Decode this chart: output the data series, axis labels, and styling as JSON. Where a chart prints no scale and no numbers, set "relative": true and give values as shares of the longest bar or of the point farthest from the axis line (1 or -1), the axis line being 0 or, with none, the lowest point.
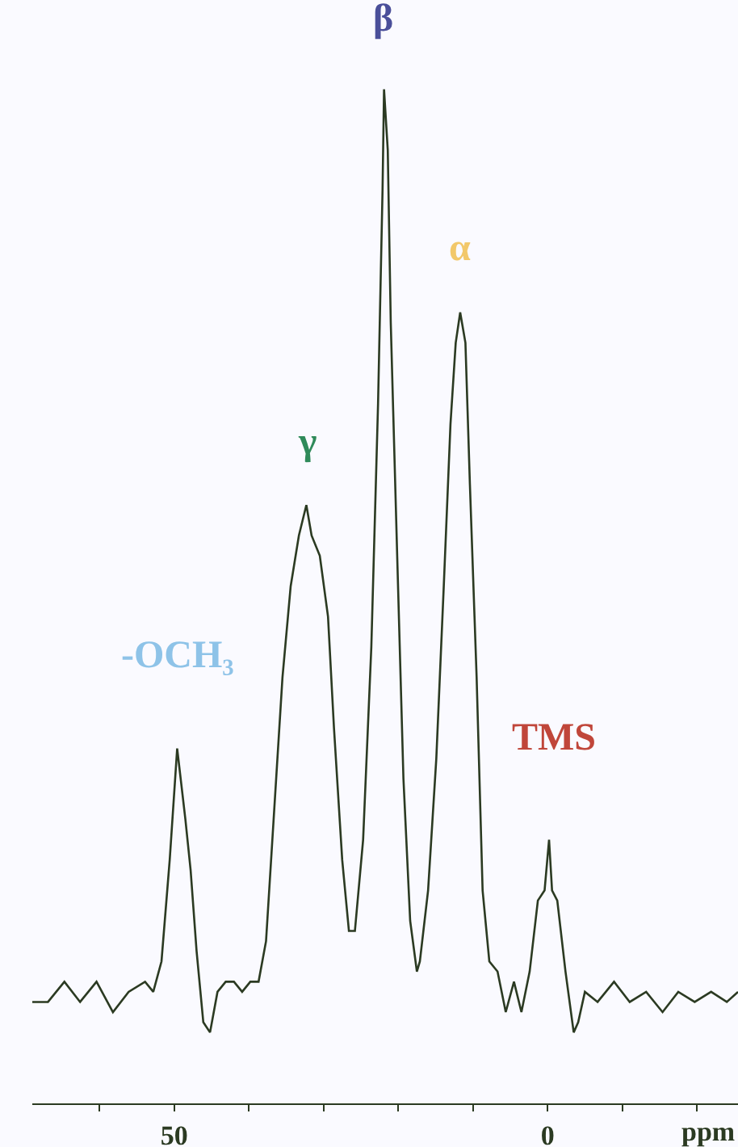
{
  "chart_data": {
    "type": "line",
    "relative": true,
    "xlabel": "ppm",
    "xlim": [
      69,
      -25.5
    ],
    "xticks": [
      {
        "value": 60,
        "label": null
      },
      50,
      {
        "value": 40,
        "label": null
      },
      {
        "value": 30,
        "label": null
      },
      {
        "value": 20,
        "label": null
      },
      {
        "value": 10,
        "label": null
      },
      0,
      {
        "value": -10,
        "label": null
      },
      {
        "value": -20,
        "label": null
      }
    ],
    "x": [
      69.0,
      66.9,
      64.7,
      62.6,
      60.4,
      58.2,
      56.1,
      53.9,
      52.8,
      51.7,
      50.6,
      49.6,
      48.5,
      47.8,
      47.0,
      46.1,
      45.2,
      44.2,
      43.1,
      42.0,
      40.9,
      39.8,
      38.7,
      37.7,
      36.6,
      35.5,
      34.4,
      33.3,
      32.3,
      31.6,
      30.5,
      29.4,
      28.6,
      27.5,
      26.6,
      25.8,
      24.7,
      23.6,
      22.7,
      22.1,
      21.9,
      21.4,
      21.0,
      20.1,
      19.3,
      18.4,
      17.5,
      17.1,
      16.0,
      14.9,
      13.9,
      13.0,
      12.3,
      11.7,
      11.0,
      10.4,
      9.5,
      8.7,
      7.8,
      6.7,
      5.6,
      4.5,
      3.5,
      2.4,
      1.3,
      0.4,
      -0.2,
      -0.6,
      -1.3,
      -2.4,
      -3.5,
      -4.1,
      -5.0,
      -6.7,
      -8.9,
      -11.0,
      -13.2,
      -15.4,
      -17.5,
      -19.7,
      -21.9,
      -24.0,
      -25.5
    ],
    "series": [
      {
        "color": "#2b3a22",
        "values": [
          0.1,
          0.1,
          0.12,
          0.1,
          0.12,
          0.09,
          0.11,
          0.12,
          0.11,
          0.14,
          0.24,
          0.35,
          0.28,
          0.23,
          0.15,
          0.08,
          0.07,
          0.11,
          0.12,
          0.12,
          0.11,
          0.12,
          0.12,
          0.16,
          0.29,
          0.42,
          0.51,
          0.56,
          0.59,
          0.56,
          0.54,
          0.48,
          0.37,
          0.24,
          0.17,
          0.17,
          0.26,
          0.45,
          0.69,
          0.9,
          1,
          0.94,
          0.77,
          0.53,
          0.32,
          0.18,
          0.13,
          0.14,
          0.21,
          0.34,
          0.51,
          0.67,
          0.75,
          0.78,
          0.75,
          0.61,
          0.42,
          0.21,
          0.14,
          0.13,
          0.09,
          0.12,
          0.09,
          0.13,
          0.2,
          0.21,
          0.26,
          0.21,
          0.2,
          0.13,
          0.07,
          0.08,
          0.11,
          0.1,
          0.12,
          0.1,
          0.11,
          0.09,
          0.11,
          0.1,
          0.11,
          0.1,
          0.11
        ]
      }
    ],
    "line_style": "solid",
    "marker": "none",
    "annotations": [
      {
        "text": "-OCH₃",
        "x": 49.6,
        "y": 0.35
      },
      {
        "text": "γ",
        "x": 32.3,
        "y": 0.59
      },
      {
        "text": "β",
        "x": 21.9,
        "y": 1
      },
      {
        "text": "α",
        "x": 11.7,
        "y": 0.78
      },
      {
        "text": "TMS",
        "x": -0.2,
        "y": 0.26
      }
    ]
  }
}
